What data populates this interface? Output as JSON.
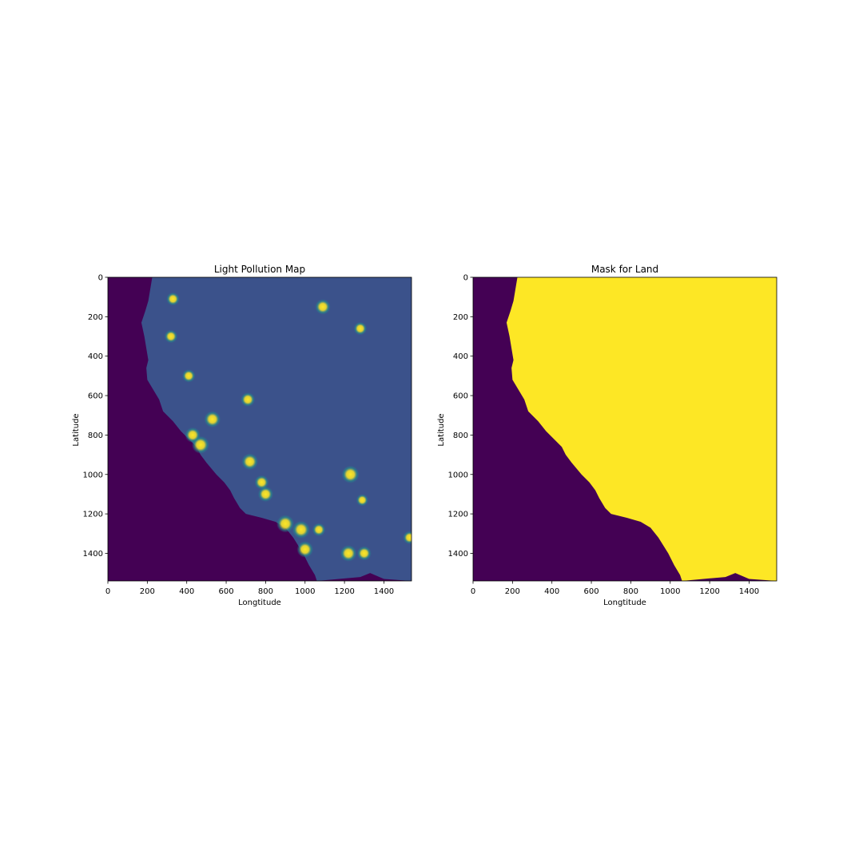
{
  "chart_data": [
    {
      "type": "heatmap",
      "title": "Light Pollution Map",
      "xlabel": "Longtitude",
      "ylabel": "Latitude",
      "xlim": [
        0,
        1540
      ],
      "ylim": [
        1540,
        0
      ],
      "xticks": [
        0,
        200,
        400,
        600,
        800,
        1000,
        1200,
        1400
      ],
      "yticks": [
        0,
        200,
        400,
        600,
        800,
        1000,
        1200,
        1400
      ],
      "colormap": "viridis",
      "colors": {
        "ocean": "#440154",
        "land": "#3b528b",
        "bright": "#fde725",
        "mid": "#21918c"
      },
      "bright_spots": [
        {
          "x": 470,
          "y": 850,
          "v": 1.0
        },
        {
          "x": 530,
          "y": 720,
          "v": 0.9
        },
        {
          "x": 430,
          "y": 800,
          "v": 0.8
        },
        {
          "x": 720,
          "y": 935,
          "v": 0.9
        },
        {
          "x": 780,
          "y": 1040,
          "v": 0.7
        },
        {
          "x": 800,
          "y": 1100,
          "v": 0.8
        },
        {
          "x": 900,
          "y": 1250,
          "v": 1.0
        },
        {
          "x": 980,
          "y": 1280,
          "v": 1.0
        },
        {
          "x": 1000,
          "y": 1380,
          "v": 0.9
        },
        {
          "x": 1230,
          "y": 1000,
          "v": 1.0
        },
        {
          "x": 1220,
          "y": 1400,
          "v": 0.9
        },
        {
          "x": 1300,
          "y": 1400,
          "v": 0.7
        },
        {
          "x": 1090,
          "y": 150,
          "v": 0.8
        },
        {
          "x": 710,
          "y": 620,
          "v": 0.7
        },
        {
          "x": 1280,
          "y": 260,
          "v": 0.6
        },
        {
          "x": 1530,
          "y": 1320,
          "v": 0.6
        },
        {
          "x": 410,
          "y": 500,
          "v": 0.6
        },
        {
          "x": 320,
          "y": 300,
          "v": 0.6
        },
        {
          "x": 330,
          "y": 110,
          "v": 0.6
        },
        {
          "x": 1070,
          "y": 1280,
          "v": 0.6
        },
        {
          "x": 1290,
          "y": 1130,
          "v": 0.5
        }
      ]
    },
    {
      "type": "heatmap",
      "title": "Mask for Land",
      "xlabel": "Longtitude",
      "ylabel": "Latitude",
      "xlim": [
        0,
        1540
      ],
      "ylim": [
        1540,
        0
      ],
      "xticks": [
        0,
        200,
        400,
        600,
        800,
        1000,
        1200,
        1400
      ],
      "yticks": [
        0,
        200,
        400,
        600,
        800,
        1000,
        1200,
        1400
      ],
      "colormap": "viridis",
      "colors": {
        "ocean": "#440154",
        "land": "#fde725"
      },
      "values": [
        0,
        1
      ]
    }
  ],
  "coastline": [
    [
      225,
      0
    ],
    [
      215,
      60
    ],
    [
      205,
      120
    ],
    [
      190,
      170
    ],
    [
      170,
      230
    ],
    [
      185,
      300
    ],
    [
      195,
      360
    ],
    [
      205,
      420
    ],
    [
      195,
      460
    ],
    [
      200,
      520
    ],
    [
      230,
      570
    ],
    [
      260,
      620
    ],
    [
      280,
      680
    ],
    [
      330,
      730
    ],
    [
      370,
      780
    ],
    [
      410,
      820
    ],
    [
      450,
      860
    ],
    [
      470,
      900
    ],
    [
      500,
      940
    ],
    [
      550,
      1000
    ],
    [
      590,
      1040
    ],
    [
      620,
      1080
    ],
    [
      640,
      1120
    ],
    [
      670,
      1170
    ],
    [
      700,
      1200
    ],
    [
      780,
      1220
    ],
    [
      850,
      1240
    ],
    [
      900,
      1270
    ],
    [
      940,
      1320
    ],
    [
      990,
      1400
    ],
    [
      1020,
      1460
    ],
    [
      1050,
      1510
    ],
    [
      1060,
      1540
    ]
  ],
  "southern_border": [
    [
      1060,
      1540
    ],
    [
      1280,
      1520
    ],
    [
      1330,
      1500
    ],
    [
      1400,
      1530
    ],
    [
      1540,
      1540
    ]
  ]
}
